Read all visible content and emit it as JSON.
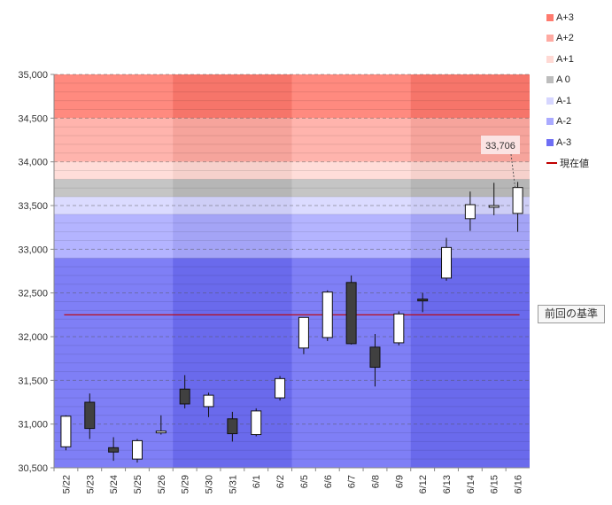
{
  "chart_data": {
    "type": "candlestick",
    "title": "",
    "categories": [
      "5/22",
      "5/23",
      "5/24",
      "5/25",
      "5/26",
      "5/29",
      "5/30",
      "5/31",
      "6/1",
      "6/2",
      "6/5",
      "6/6",
      "6/7",
      "6/8",
      "6/9",
      "6/12",
      "6/13",
      "6/14",
      "6/15",
      "6/16"
    ],
    "ohlc": [
      {
        "open": 30740,
        "high": 31100,
        "low": 30700,
        "close": 31090
      },
      {
        "open": 31250,
        "high": 31350,
        "low": 30830,
        "close": 30950
      },
      {
        "open": 30730,
        "high": 30850,
        "low": 30580,
        "close": 30680
      },
      {
        "open": 30600,
        "high": 30830,
        "low": 30560,
        "close": 30810
      },
      {
        "open": 30910,
        "high": 31100,
        "low": 30880,
        "close": 30920
      },
      {
        "open": 31400,
        "high": 31560,
        "low": 31180,
        "close": 31230
      },
      {
        "open": 31200,
        "high": 31360,
        "low": 31080,
        "close": 31330
      },
      {
        "open": 31060,
        "high": 31140,
        "low": 30800,
        "close": 30890
      },
      {
        "open": 30880,
        "high": 31180,
        "low": 30860,
        "close": 31150
      },
      {
        "open": 31300,
        "high": 31550,
        "low": 31270,
        "close": 31520
      },
      {
        "open": 31870,
        "high": 32220,
        "low": 31800,
        "close": 32220
      },
      {
        "open": 31990,
        "high": 32530,
        "low": 31950,
        "close": 32510
      },
      {
        "open": 32620,
        "high": 32700,
        "low": 31910,
        "close": 31920
      },
      {
        "open": 31880,
        "high": 32030,
        "low": 31430,
        "close": 31650
      },
      {
        "open": 31930,
        "high": 32290,
        "low": 31900,
        "close": 32260
      },
      {
        "open": 32430,
        "high": 32500,
        "low": 32280,
        "close": 32410
      },
      {
        "open": 32670,
        "high": 33130,
        "low": 32640,
        "close": 33020
      },
      {
        "open": 33350,
        "high": 33660,
        "low": 33210,
        "close": 33510
      },
      {
        "open": 33490,
        "high": 33760,
        "low": 33390,
        "close": 33500
      },
      {
        "open": 33410,
        "high": 33770,
        "low": 33200,
        "close": 33706
      }
    ],
    "ylim": [
      30500,
      35000
    ],
    "yticks": [
      "30,500",
      "31,000",
      "31,500",
      "32,000",
      "32,500",
      "33,000",
      "33,500",
      "34,000",
      "34,500",
      "35,000"
    ],
    "ytick_values": [
      30500,
      31000,
      31500,
      32000,
      32500,
      33000,
      33500,
      34000,
      34500,
      35000
    ],
    "bands": [
      {
        "name": "A+3",
        "from": 34500,
        "to": 35000,
        "color": "#ff7a6e"
      },
      {
        "name": "A+2",
        "from": 34000,
        "to": 34500,
        "color": "#ffaaa2"
      },
      {
        "name": "A+1",
        "from": 33800,
        "to": 34000,
        "color": "#ffd9d4"
      },
      {
        "name": "A 0",
        "from": 33600,
        "to": 33800,
        "color": "#bdbdbd"
      },
      {
        "name": "A-1",
        "from": 33400,
        "to": 33600,
        "color": "#d6d6ff"
      },
      {
        "name": "A-2",
        "from": 32900,
        "to": 33400,
        "color": "#aaaaff"
      },
      {
        "name": "A-3",
        "from": 30500,
        "to": 32900,
        "color": "#6e6ef5"
      }
    ],
    "reference_line": {
      "name": "現在値",
      "value": 32250,
      "color": "#c00000"
    },
    "reference_label": "前回の基準",
    "last_value_label": "33,706",
    "legend": [
      {
        "label": "A+3",
        "color": "#ff7a6e",
        "kind": "box"
      },
      {
        "label": "A+2",
        "color": "#ffaaa2",
        "kind": "box"
      },
      {
        "label": "A+1",
        "color": "#ffd9d4",
        "kind": "box"
      },
      {
        "label": "A 0",
        "color": "#bdbdbd",
        "kind": "box"
      },
      {
        "label": "A-1",
        "color": "#d6d6ff",
        "kind": "box"
      },
      {
        "label": "A-2",
        "color": "#aaaaff",
        "kind": "box"
      },
      {
        "label": "A-3",
        "color": "#6e6ef5",
        "kind": "box"
      },
      {
        "label": "現在値",
        "color": "#c00000",
        "kind": "line"
      }
    ],
    "legend_position": "right",
    "week_groups": [
      [
        0,
        4
      ],
      [
        5,
        9
      ],
      [
        10,
        14
      ],
      [
        15,
        19
      ]
    ]
  }
}
